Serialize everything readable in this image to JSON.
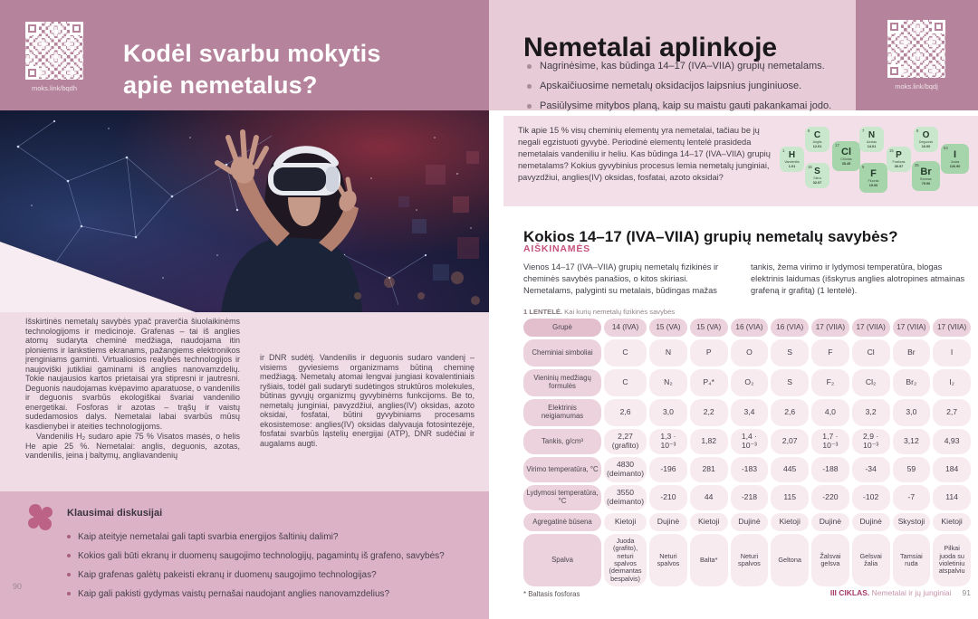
{
  "colors": {
    "mauve": "#b5839b",
    "header_pink": "#e7ccd8",
    "box_pink": "#f3dfe7",
    "page_pink": "#f0dce5",
    "band_pink": "#dcb3c6",
    "accent_rose": "#c5517c",
    "footer_rose": "#a63c68",
    "tile_green_light": "#c9e7cc",
    "tile_green_dark": "#a6d5ab"
  },
  "left_page": {
    "qr_caption": "moks.link/bqdh",
    "title": "Kodėl svarbu mokytis apie nemetalus?",
    "body_col1_p1": "Išskirtinės nemetalų savybės ypač praverčia šiuolaikinėms technologijoms ir medicinoje. Grafenas – tai iš anglies atomų sudaryta cheminė medžiaga, naudojama itin ploniems ir lankstiems ekranams, pažangiems elektronikos įrenginiams gaminti. Virtualiosios realybės technologijos ir naujoviški jutikliai gaminami iš anglies nanovamzdelių. Tokie naujausios kartos prietaisai yra stipresni ir jautresni. Deguonis naudojamas kvėpavimo aparatuose, o vandenilis ir deguonis svarbūs ekologiškai švariai vandenilio energetikai. Fosforas ir azotas – trąšų ir vaistų sudedamosios dalys. Nemetalai labai svarbūs mūsų kasdienybei ir ateities technologijoms.",
    "body_col1_p2": "Vandenilis H₂ sudaro apie 75 % Visatos masės, o helis He apie 25 %. Nemetalai: anglis, deguonis, azotas, vandenilis, įeina į baltymų, angliavandenių",
    "body_col2": "ir DNR sudėtį. Vandenilis ir deguonis sudaro vandenį – visiems gyviesiems organizmams būtiną cheminę medžiagą. Nemetalų atomai lengvai jungiasi kovalentiniais ryšiais, todėl gali sudaryti sudėtingos struktūros molekules, būtinas gyvųjų organizmų gyvybinėms funkcijoms. Be to, nemetalų junginiai, pavyzdžiui, anglies(IV) oksidas, azoto oksidai, fosfatai, būtini gyvybiniams procesams ekosistemose: anglies(IV) oksidas dalyvauja fotosintezėje, fosfatai svarbūs ląstelių energijai (ATP), DNR sudėčiai ir augalams augti.",
    "discussion": {
      "title": "Klausimai diskusijai",
      "questions": [
        "Kaip ateityje nemetalai gali tapti svarbia energijos šaltinių dalimi?",
        "Kokios gali būti ekranų ir duomenų saugojimo technologijų, pagamintų iš grafeno, savybės?",
        "Kaip grafenas galėtų pakeisti ekranų ir duomenų saugojimo technologijas?",
        "Kaip gali pakisti gydymas vaistų pernašai naudojant anglies nanovamzdelius?"
      ]
    },
    "page_number": "90"
  },
  "right_page": {
    "title": "Nemetalai aplinkoje",
    "objectives": [
      "Nagrinėsime, kas būdinga 14–17 (IVA–VIIA) grupių nemetalams.",
      "Apskaičiuosime nemetalų oksidacijos laipsnius junginiuose.",
      "Pasiūlysime mitybos planą, kaip su maistu gauti pakankamai jodo."
    ],
    "qr_caption": "moks.link/bqdj",
    "intro": "Tik apie 15 % visų cheminių elementų yra nemetalai, tačiau be jų negali egzistuoti gyvybė. Periodinė elementų lentelė prasideda nemetalais vandeniliu ir heliu. Kas būdinga 14–17 (IVA–VIIA) grupių nemetalams? Kokius gyvybinius procesus lemia nemetalų junginiai, pavyzdžiui, anglies(IV) oksidas, fosfatai, azoto oksidai?",
    "elements": [
      {
        "symbol": "H",
        "number": "1",
        "name": "Vandenilis",
        "mass": "1.01",
        "variant": "light"
      },
      {
        "symbol": "C",
        "number": "6",
        "name": "Anglis",
        "mass": "12.01",
        "variant": "light"
      },
      {
        "symbol": "S",
        "number": "16",
        "name": "Siera",
        "mass": "32.07",
        "variant": "light"
      },
      {
        "symbol": "Cl",
        "number": "17",
        "name": "Chloras",
        "mass": "35.45",
        "variant": "dark"
      },
      {
        "symbol": "N",
        "number": "7",
        "name": "Azotas",
        "mass": "14.01",
        "variant": "light"
      },
      {
        "symbol": "F",
        "number": "9",
        "name": "Fluoras",
        "mass": "19.00",
        "variant": "dark"
      },
      {
        "symbol": "P",
        "number": "15",
        "name": "Fosforas",
        "mass": "30.97",
        "variant": "light"
      },
      {
        "symbol": "O",
        "number": "8",
        "name": "Deguonis",
        "mass": "16.00",
        "variant": "light"
      },
      {
        "symbol": "Br",
        "number": "35",
        "name": "Bromas",
        "mass": "79.90",
        "variant": "dark"
      },
      {
        "symbol": "I",
        "number": "53",
        "name": "Jodas",
        "mass": "126.90",
        "variant": "dark"
      }
    ],
    "section_heading": "Kokios 14–17 (IVA–VIIA) grupių nemetalų savybės?",
    "explain_label": "AIŠKINAMĖS",
    "explain_col1": "Vienos 14–17 (IVA–VIIA) grupių nemetalų fizikinės ir cheminės savybės panašios, o kitos skiriasi. Nemetalams, palyginti su metalais, būdingas mažas",
    "explain_col2": "tankis, žema virimo ir lydymosi temperatūra, blogas elektrinis laidumas (išskyrus anglies alotropines atmainas grafeną ir grafitą) (1 lentelė).",
    "table": {
      "caption_bold": "1 LENTELĖ.",
      "caption_rest": " Kai kurių nemetalų fizikinės savybės",
      "rows": [
        {
          "label": "Grupė",
          "cells": [
            "14 (IVA)",
            "15 (VA)",
            "15 (VA)",
            "16 (VIA)",
            "16 (VIA)",
            "17 (VIIA)",
            "17 (VIIA)",
            "17 (VIIA)",
            "17 (VIIA)"
          ]
        },
        {
          "label": "Cheminiai simboliai",
          "cells": [
            "C",
            "N",
            "P",
            "O",
            "S",
            "F",
            "Cl",
            "Br",
            "I"
          ]
        },
        {
          "label": "Vieninių medžiagų formulės",
          "cells": [
            "C",
            "N₂",
            "P₄*",
            "O₂",
            "S",
            "F₂",
            "Cl₂",
            "Br₂",
            "I₂"
          ]
        },
        {
          "label": "Elektrinis neigiamumas",
          "cells": [
            "2,6",
            "3,0",
            "2,2",
            "3,4",
            "2,6",
            "4,0",
            "3,2",
            "3,0",
            "2,7"
          ]
        },
        {
          "label": "Tankis, g/cm³",
          "cells": [
            "2,27 (grafito)",
            "1,3 · 10⁻³",
            "1,82",
            "1,4 · 10⁻³",
            "2,07",
            "1,7 · 10⁻³",
            "2,9 · 10⁻³",
            "3,12",
            "4,93"
          ]
        },
        {
          "label": "Virimo temperatūra, °C",
          "cells": [
            "4830 (deimanto)",
            "-196",
            "281",
            "-183",
            "445",
            "-188",
            "-34",
            "59",
            "184"
          ]
        },
        {
          "label": "Lydymosi temperatūra, °C",
          "cells": [
            "3550 (deimanto)",
            "-210",
            "44",
            "-218",
            "115",
            "-220",
            "-102",
            "-7",
            "114"
          ]
        },
        {
          "label": "Agregatinė būsena",
          "cells": [
            "Kietoji",
            "Dujinė",
            "Kietoji",
            "Dujinė",
            "Kietoji",
            "Dujinė",
            "Dujinė",
            "Skystoji",
            "Kietoji"
          ]
        },
        {
          "label": "Spalva",
          "cells": [
            "Juoda (grafito), neturi spalvos (deimantas bespalvis)",
            "Neturi spalvos",
            "Balta*",
            "Neturi spalvos",
            "Geltona",
            "Žalsvai gelsva",
            "Gelsvai žalia",
            "Tamsiai ruda",
            "Pilkai juoda su violetiniu atspalviu"
          ]
        }
      ]
    },
    "footnote": "* Baltasis fosforas",
    "footer_bold": "III CIKLAS.",
    "footer_rest": " Nemetalai ir jų junginiai",
    "page_number": "91"
  }
}
